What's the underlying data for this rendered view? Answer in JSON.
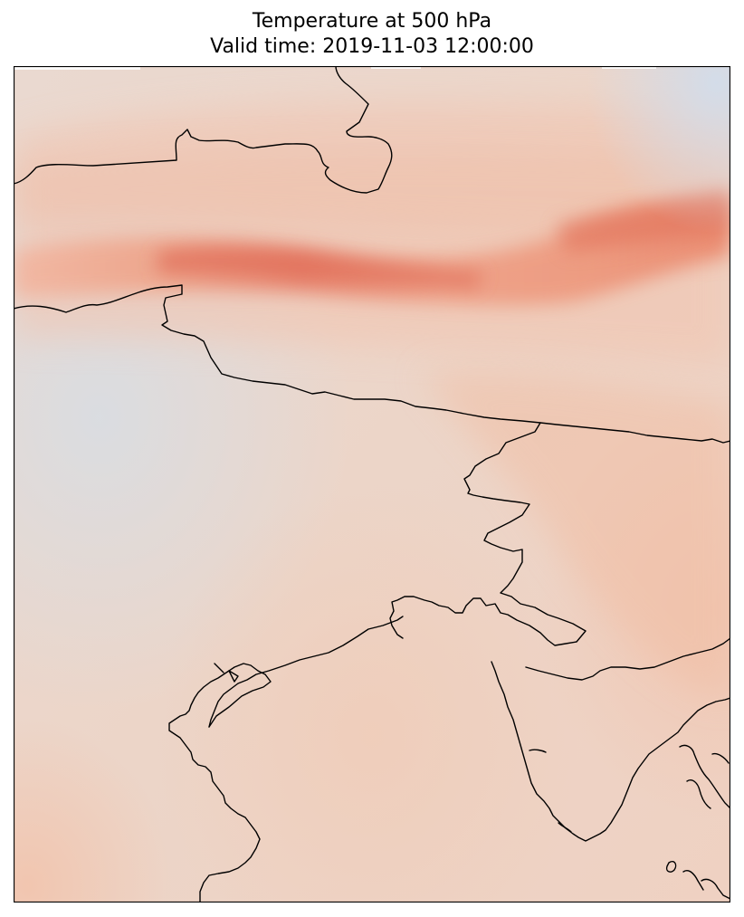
{
  "figure": {
    "title_line1": "Temperature at 500 hPa",
    "title_line2": "Valid time: 2019-11-03 12:00:00"
  },
  "map": {
    "variable": "Temperature",
    "level": "500 hPa",
    "valid_time": "2019-11-03 12:00:00",
    "colors": {
      "background_warm": "#efd3c6",
      "background_neutral": "#e2dcd8",
      "cool_tint": "#d6dde6",
      "band_mid": "#f0a88e",
      "band_core": "#e2705a",
      "coastline": "#000000"
    }
  }
}
